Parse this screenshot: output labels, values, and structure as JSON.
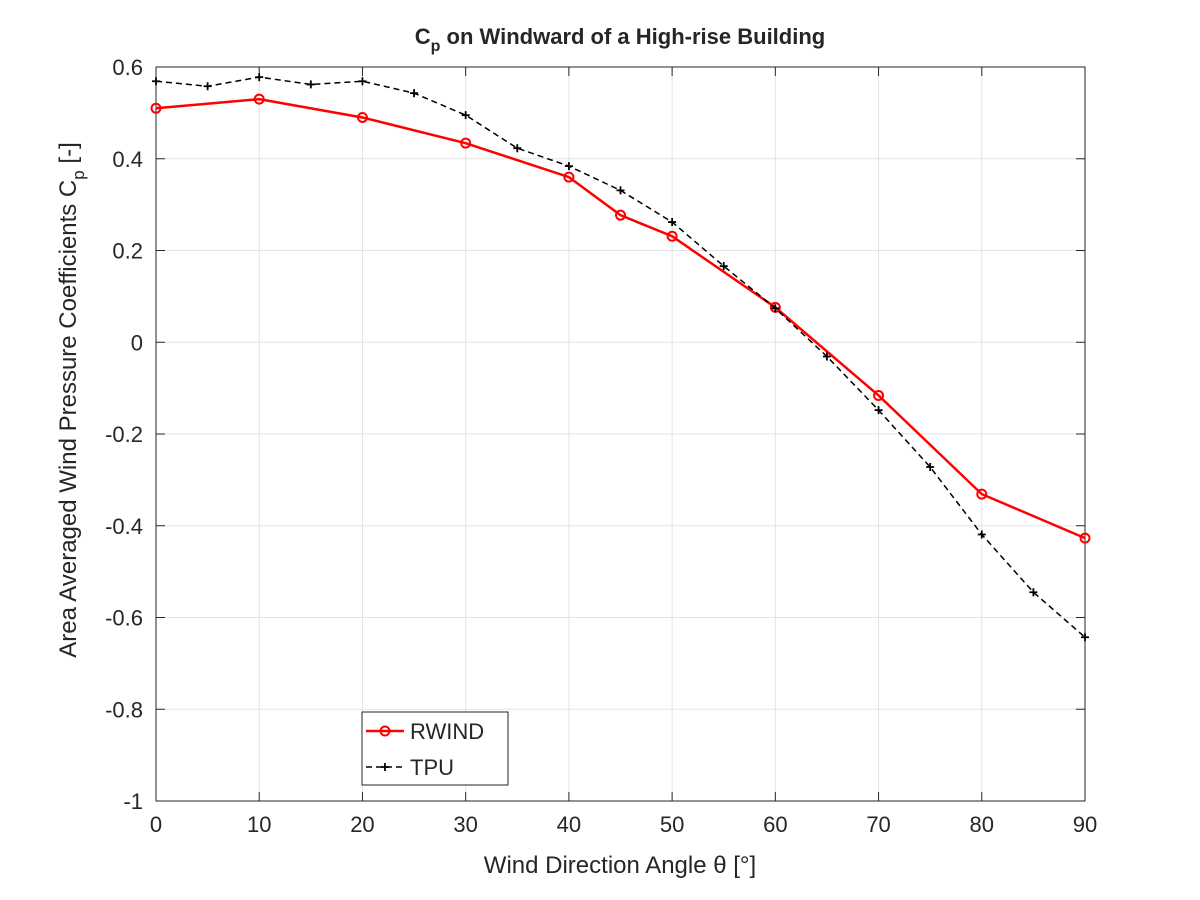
{
  "chart_data": {
    "type": "line",
    "title": {
      "main": "C",
      "sub": "p",
      "rest": " on Windward of a High-rise Building"
    },
    "xlabel": "Wind Direction Angle θ [°]",
    "ylabel": {
      "main": "Area Averaged Wind Pressure Coefficients C",
      "sub": "p",
      "rest": "  [-]"
    },
    "xlim": [
      0,
      90
    ],
    "ylim": [
      -1,
      0.6
    ],
    "xticks": [
      0,
      10,
      20,
      30,
      40,
      50,
      60,
      70,
      80,
      90
    ],
    "yticks": [
      -1,
      -0.8,
      -0.6,
      -0.4,
      -0.2,
      0,
      0.2,
      0.4,
      0.6
    ],
    "ytick_labels": [
      "-1",
      "-0.8",
      "-0.6",
      "-0.4",
      "-0.2",
      "0",
      "0.2",
      "0.4",
      "0.6"
    ],
    "grid": true,
    "legend_placement": "bottom-left",
    "series": [
      {
        "name": "RWIND",
        "color": "#ff0000",
        "style": "solid",
        "marker": "circle",
        "x": [
          0,
          10,
          20,
          30,
          40,
          45,
          50,
          60,
          70,
          80,
          90
        ],
        "y": [
          0.51,
          0.53,
          0.49,
          0.434,
          0.36,
          0.277,
          0.231,
          0.076,
          -0.116,
          -0.331,
          -0.427
        ]
      },
      {
        "name": "TPU",
        "color": "#000000",
        "style": "dashed",
        "marker": "plus",
        "x": [
          0,
          5,
          10,
          15,
          20,
          25,
          30,
          35,
          40,
          45,
          50,
          55,
          60,
          65,
          70,
          75,
          80,
          85,
          90
        ],
        "y": [
          0.569,
          0.558,
          0.578,
          0.562,
          0.569,
          0.543,
          0.495,
          0.423,
          0.384,
          0.331,
          0.262,
          0.166,
          0.074,
          -0.031,
          -0.148,
          -0.272,
          -0.419,
          -0.545,
          -0.643
        ]
      }
    ]
  }
}
